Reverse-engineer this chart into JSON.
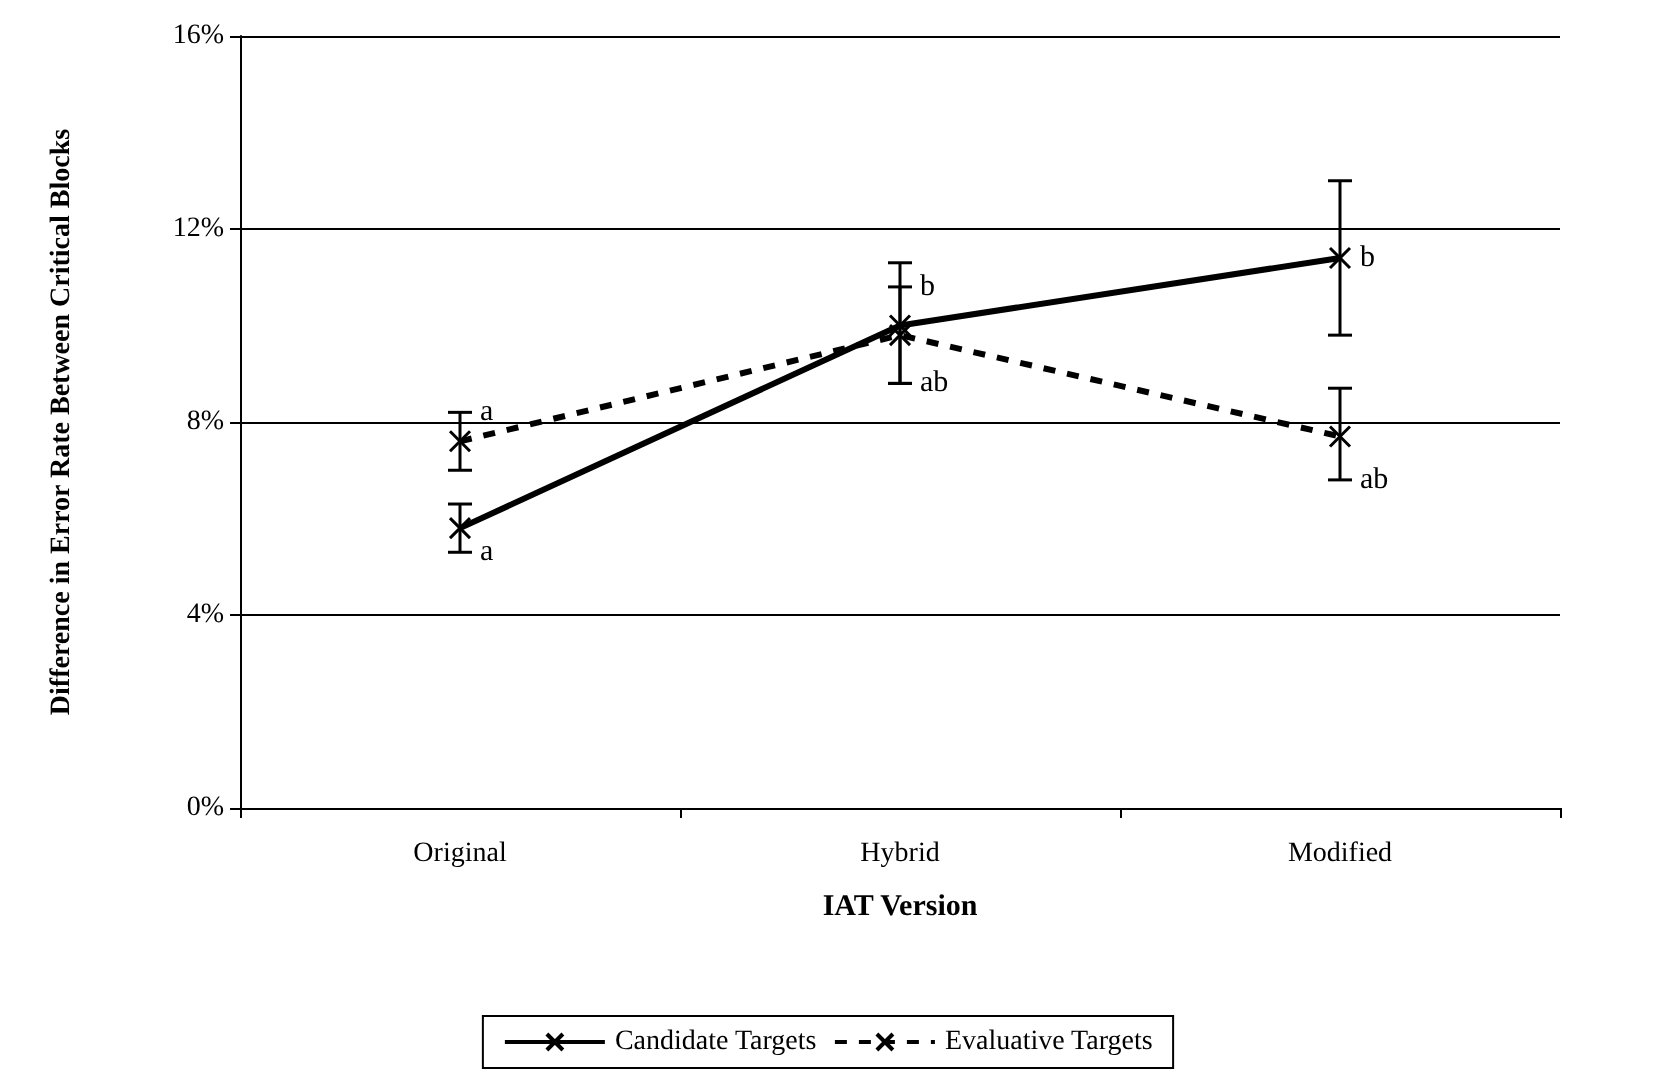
{
  "chart_data": {
    "type": "line",
    "xlabel": "IAT Version",
    "ylabel": "Difference in Error Rate Between Critical Blocks",
    "categories": [
      "Original",
      "Hybrid",
      "Modified"
    ],
    "series": [
      {
        "name": "Candidate Targets",
        "color": "#000000",
        "line_style": "solid",
        "marker": "cross",
        "values": [
          5.8,
          10.0,
          11.4
        ],
        "errors": [
          [
            5.3,
            6.3
          ],
          [
            8.8,
            11.3
          ],
          [
            9.8,
            13.0
          ]
        ]
      },
      {
        "name": "Evaluative Targets",
        "color": "#000000",
        "line_style": "dashed",
        "marker": "cross",
        "values": [
          7.6,
          9.8,
          7.7
        ],
        "errors": [
          [
            7.0,
            8.2
          ],
          [
            8.8,
            10.8
          ],
          [
            6.8,
            8.7
          ]
        ]
      }
    ],
    "ylim": [
      0,
      16
    ],
    "yticks": [
      {
        "value": 0,
        "label": "0%"
      },
      {
        "value": 4,
        "label": "4%"
      },
      {
        "value": 8,
        "label": "8%"
      },
      {
        "value": 12,
        "label": "12%"
      },
      {
        "value": 16,
        "label": "16%"
      }
    ],
    "grid": "y",
    "legend": "bottom",
    "annotations": [
      {
        "text": "a",
        "x": "Original",
        "y": 8.2
      },
      {
        "text": "a",
        "x": "Original",
        "y": 5.3
      },
      {
        "text": "b",
        "x": "Hybrid",
        "y": 10.8
      },
      {
        "text": "ab",
        "x": "Hybrid",
        "y": 8.8
      },
      {
        "text": "b",
        "x": "Modified",
        "y": 11.4
      },
      {
        "text": "ab",
        "x": "Modified",
        "y": 6.8
      }
    ]
  }
}
